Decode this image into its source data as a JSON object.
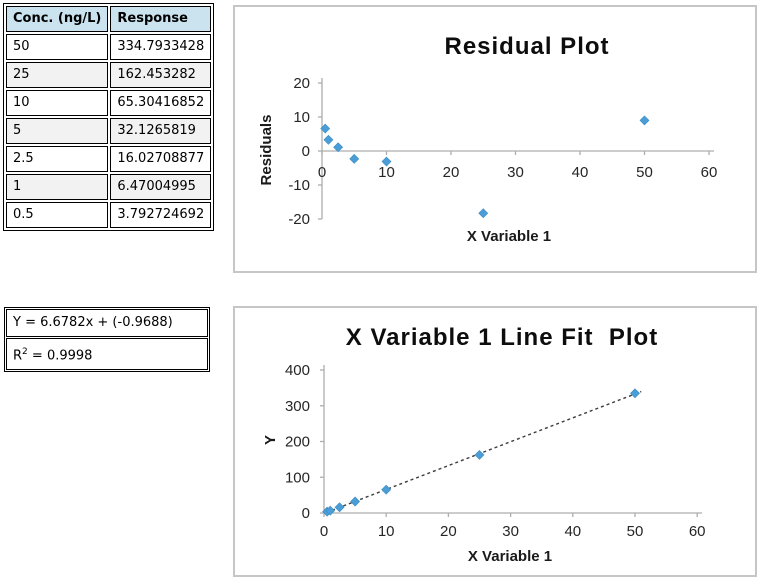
{
  "table": {
    "headers": [
      "Conc. (ng/L)",
      "Response"
    ],
    "rows": [
      [
        "50",
        "334.7933428"
      ],
      [
        "25",
        "162.453282"
      ],
      [
        "10",
        "65.30416852"
      ],
      [
        "5",
        "32.1265819"
      ],
      [
        "2.5",
        "16.02708877"
      ],
      [
        "1",
        "6.47004995"
      ],
      [
        "0.5",
        "3.792724692"
      ]
    ]
  },
  "equation": {
    "line1": "Y = 6.6782x + (-0.9688)",
    "r2_base": "R",
    "r2_exp": "2",
    "r2_rest": " = 0.9998"
  },
  "chart_data": [
    {
      "type": "scatter",
      "title": "Residual Plot",
      "xlabel": "X Variable 1",
      "ylabel": "Residuals",
      "xlim": [
        0,
        60
      ],
      "ylim": [
        -20,
        20
      ],
      "x_ticks": [
        0,
        10,
        20,
        30,
        40,
        50,
        60
      ],
      "y_ticks": [
        20,
        10,
        0,
        -10,
        -20
      ],
      "grid": false,
      "legend": "none",
      "points": [
        [
          0.5,
          6.6
        ],
        [
          1,
          3.3
        ],
        [
          2.5,
          1.1
        ],
        [
          5,
          -2.3
        ],
        [
          10,
          -3.1
        ],
        [
          25,
          -18.3
        ],
        [
          50,
          9.0
        ]
      ],
      "marker": "diamond",
      "marker_color": "#4a9dd6",
      "marker_edge": "#3a8cc4"
    },
    {
      "type": "scatter",
      "title": "X Variable 1 Line Fit  Plot",
      "xlabel": "X Variable 1",
      "ylabel": "Y",
      "xlim": [
        0,
        60
      ],
      "ylim": [
        0,
        400
      ],
      "x_ticks": [
        0,
        10,
        20,
        30,
        40,
        50,
        60
      ],
      "y_ticks": [
        0,
        100,
        200,
        300,
        400
      ],
      "grid": false,
      "legend": "none",
      "points": [
        [
          0.5,
          3.792724692
        ],
        [
          1,
          6.47004995
        ],
        [
          2.5,
          16.02708877
        ],
        [
          5,
          32.1265819
        ],
        [
          10,
          65.30416852
        ],
        [
          25,
          162.453282
        ],
        [
          50,
          334.7933428
        ]
      ],
      "trendline": {
        "slope": 6.6782,
        "intercept": -0.9688,
        "x_start": 0.4,
        "x_end": 51,
        "style": "dashed"
      },
      "marker": "diamond",
      "marker_color": "#4a9dd6",
      "marker_edge": "#3a8cc4"
    }
  ],
  "colors": {
    "marker_blue": "#4a9dd6",
    "table_header_bg": "#cbe3ee",
    "table_alt_row_bg": "#f2f2f2",
    "axis_gray": "#adadad",
    "panel_border": "#c6c6c6",
    "trendline": "#3d3d3d"
  }
}
